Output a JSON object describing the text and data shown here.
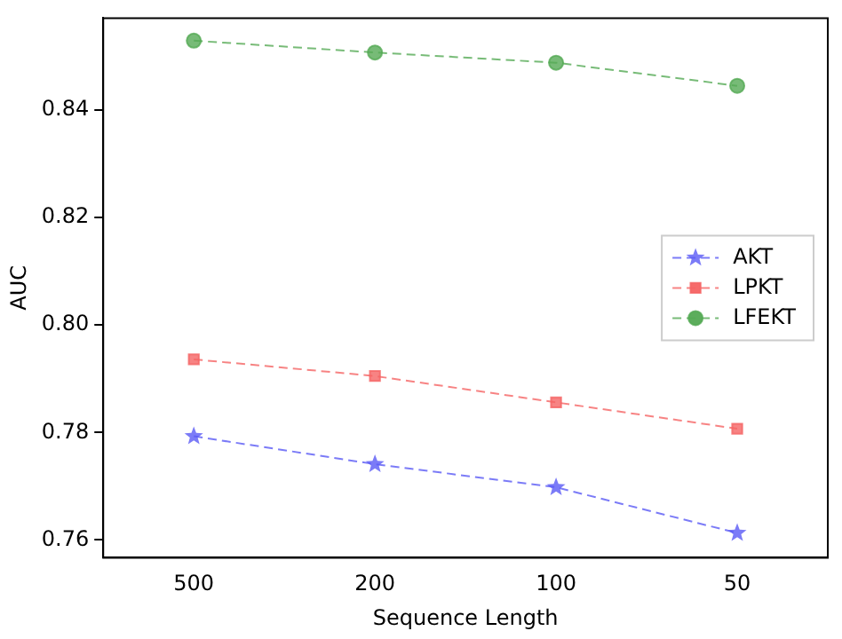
{
  "chart_data": {
    "type": "line",
    "xlabel": "Sequence Length",
    "ylabel": "AUC",
    "categories": [
      "500",
      "200",
      "100",
      "50"
    ],
    "series": [
      {
        "name": "AKT",
        "color": "#5a5af5",
        "marker": "star",
        "values": [
          0.7793,
          0.7741,
          0.7698,
          0.7613
        ]
      },
      {
        "name": "LPKT",
        "color": "#f56464",
        "marker": "square",
        "values": [
          0.7936,
          0.7905,
          0.7856,
          0.7807
        ]
      },
      {
        "name": "LFEKT",
        "color": "#55aa55",
        "marker": "circle",
        "values": [
          0.8529,
          0.8507,
          0.8488,
          0.8445
        ]
      }
    ],
    "ylim": [
      0.7567,
      0.8571
    ],
    "yticks": [
      0.76,
      0.78,
      {
        "value": 0.8,
        "label": "0.80"
      },
      0.82,
      0.84
    ],
    "line_style": "dashed",
    "grid": false,
    "legend": "right"
  }
}
